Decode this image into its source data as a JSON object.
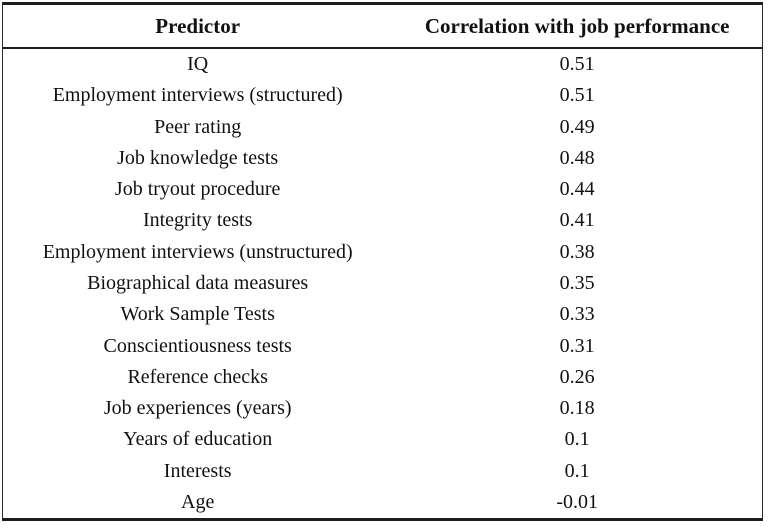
{
  "table": {
    "columns": {
      "predictor": "Predictor",
      "correlation": "Correlation with job performance"
    },
    "rows": [
      {
        "predictor": "IQ",
        "correlation": "0.51"
      },
      {
        "predictor": "Employment interviews (structured)",
        "correlation": "0.51"
      },
      {
        "predictor": "Peer rating",
        "correlation": "0.49"
      },
      {
        "predictor": "Job knowledge tests",
        "correlation": "0.48"
      },
      {
        "predictor": "Job tryout procedure",
        "correlation": "0.44"
      },
      {
        "predictor": "Integrity tests",
        "correlation": "0.41"
      },
      {
        "predictor": "Employment interviews (unstructured)",
        "correlation": "0.38"
      },
      {
        "predictor": "Biographical data measures",
        "correlation": "0.35"
      },
      {
        "predictor": "Work Sample Tests",
        "correlation": "0.33"
      },
      {
        "predictor": "Conscientiousness tests",
        "correlation": "0.31"
      },
      {
        "predictor": "Reference checks",
        "correlation": "0.26"
      },
      {
        "predictor": "Job experiences (years)",
        "correlation": "0.18"
      },
      {
        "predictor": "Years of education",
        "correlation": "0.1"
      },
      {
        "predictor": "Interests",
        "correlation": "0.1"
      },
      {
        "predictor": "Age",
        "correlation": "-0.01"
      }
    ]
  },
  "chart_data": {
    "type": "table",
    "title": "",
    "columns": [
      "Predictor",
      "Correlation with job performance"
    ],
    "categories": [
      "IQ",
      "Employment interviews (structured)",
      "Peer rating",
      "Job knowledge tests",
      "Job tryout procedure",
      "Integrity tests",
      "Employment interviews (unstructured)",
      "Biographical data measures",
      "Work Sample Tests",
      "Conscientiousness tests",
      "Reference checks",
      "Job experiences (years)",
      "Years of education",
      "Interests",
      "Age"
    ],
    "values": [
      0.51,
      0.51,
      0.49,
      0.48,
      0.44,
      0.41,
      0.38,
      0.35,
      0.33,
      0.31,
      0.26,
      0.18,
      0.1,
      0.1,
      -0.01
    ]
  },
  "colors": {
    "border": "#1c1c1c",
    "text": "#111111",
    "background": "#ffffff"
  }
}
